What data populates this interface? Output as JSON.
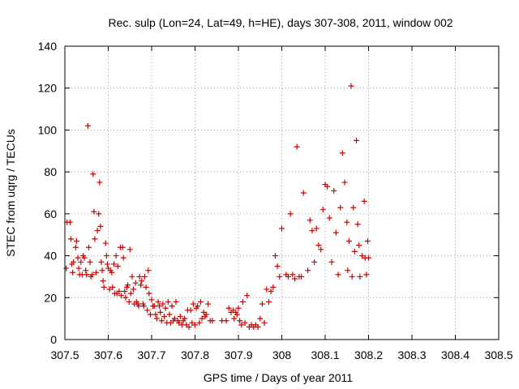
{
  "chart_data": {
    "type": "scatter",
    "title": "Rec. sulp (Lon=24, Lat=49, h=HE), days 307-308, 2011, window 002",
    "xlabel": "GPS time / Days of year 2011",
    "ylabel": "STEC from uqrg / TECUs",
    "xlim": [
      307.5,
      308.5
    ],
    "ylim": [
      0,
      140
    ],
    "xticks": [
      "307.5",
      "307.6",
      "307.7",
      "307.8",
      "307.9",
      "308",
      "308.1",
      "308.2",
      "308.3",
      "308.4",
      "308.5"
    ],
    "yticks": [
      "0",
      "20",
      "40",
      "60",
      "80",
      "100",
      "120",
      "140"
    ],
    "grid": true,
    "marker": "+",
    "marker_color": "#cc0000",
    "points": [
      [
        307.503,
        34
      ],
      [
        307.505,
        56
      ],
      [
        307.512,
        56
      ],
      [
        307.514,
        48
      ],
      [
        307.516,
        36
      ],
      [
        307.518,
        32
      ],
      [
        307.52,
        37
      ],
      [
        307.525,
        44
      ],
      [
        307.527,
        47
      ],
      [
        307.53,
        39
      ],
      [
        307.532,
        34
      ],
      [
        307.534,
        31
      ],
      [
        307.537,
        37
      ],
      [
        307.54,
        31
      ],
      [
        307.542,
        40
      ],
      [
        307.545,
        39
      ],
      [
        307.548,
        33
      ],
      [
        307.55,
        31
      ],
      [
        307.553,
        102
      ],
      [
        307.555,
        44
      ],
      [
        307.558,
        37
      ],
      [
        307.56,
        30
      ],
      [
        307.563,
        31
      ],
      [
        307.565,
        79
      ],
      [
        307.567,
        61
      ],
      [
        307.569,
        48
      ],
      [
        307.572,
        32
      ],
      [
        307.575,
        52
      ],
      [
        307.578,
        60
      ],
      [
        307.58,
        75
      ],
      [
        307.582,
        54
      ],
      [
        307.584,
        37
      ],
      [
        307.586,
        33
      ],
      [
        307.588,
        28
      ],
      [
        307.59,
        25
      ],
      [
        307.594,
        46
      ],
      [
        307.596,
        40
      ],
      [
        307.598,
        36
      ],
      [
        307.6,
        34
      ],
      [
        307.603,
        24
      ],
      [
        307.605,
        33
      ],
      [
        307.608,
        32
      ],
      [
        307.61,
        25
      ],
      [
        307.613,
        36
      ],
      [
        307.615,
        22
      ],
      [
        307.618,
        40
      ],
      [
        307.62,
        22
      ],
      [
        307.622,
        35
      ],
      [
        307.625,
        23
      ],
      [
        307.628,
        44
      ],
      [
        307.63,
        21
      ],
      [
        307.633,
        44
      ],
      [
        307.635,
        39
      ],
      [
        307.638,
        23
      ],
      [
        307.64,
        20
      ],
      [
        307.643,
        25
      ],
      [
        307.645,
        26
      ],
      [
        307.648,
        18
      ],
      [
        307.65,
        43
      ],
      [
        307.652,
        22
      ],
      [
        307.655,
        30
      ],
      [
        307.658,
        24
      ],
      [
        307.66,
        17
      ],
      [
        307.663,
        27
      ],
      [
        307.665,
        18
      ],
      [
        307.668,
        17
      ],
      [
        307.67,
        16
      ],
      [
        307.672,
        30
      ],
      [
        307.675,
        26
      ],
      [
        307.677,
        28
      ],
      [
        307.68,
        17
      ],
      [
        307.682,
        16
      ],
      [
        307.684,
        30
      ],
      [
        307.687,
        25
      ],
      [
        307.69,
        14
      ],
      [
        307.692,
        33
      ],
      [
        307.694,
        22
      ],
      [
        307.697,
        12
      ],
      [
        307.7,
        19
      ],
      [
        307.703,
        16
      ],
      [
        307.706,
        16
      ],
      [
        307.709,
        12
      ],
      [
        307.712,
        10
      ],
      [
        307.715,
        18
      ],
      [
        307.718,
        16
      ],
      [
        307.72,
        13
      ],
      [
        307.723,
        9
      ],
      [
        307.726,
        17
      ],
      [
        307.729,
        11
      ],
      [
        307.732,
        15
      ],
      [
        307.735,
        8
      ],
      [
        307.738,
        18
      ],
      [
        307.741,
        12
      ],
      [
        307.744,
        8
      ],
      [
        307.747,
        16
      ],
      [
        307.75,
        9
      ],
      [
        307.753,
        10
      ],
      [
        307.756,
        18
      ],
      [
        307.76,
        9
      ],
      [
        307.763,
        8
      ],
      [
        307.766,
        11
      ],
      [
        307.77,
        7
      ],
      [
        307.773,
        9
      ],
      [
        307.776,
        10
      ],
      [
        307.78,
        7
      ],
      [
        307.783,
        14
      ],
      [
        307.786,
        6
      ],
      [
        307.79,
        14
      ],
      [
        307.793,
        8
      ],
      [
        307.796,
        17
      ],
      [
        307.8,
        7
      ],
      [
        307.803,
        15
      ],
      [
        307.806,
        16
      ],
      [
        307.81,
        8
      ],
      [
        307.813,
        18
      ],
      [
        307.816,
        10
      ],
      [
        307.82,
        13
      ],
      [
        307.823,
        11
      ],
      [
        307.826,
        12
      ],
      [
        307.83,
        17
      ],
      [
        307.835,
        9
      ],
      [
        307.84,
        9
      ],
      [
        307.862,
        9
      ],
      [
        307.872,
        9
      ],
      [
        307.878,
        15
      ],
      [
        307.883,
        13
      ],
      [
        307.888,
        14
      ],
      [
        307.89,
        10
      ],
      [
        307.894,
        13
      ],
      [
        307.897,
        12
      ],
      [
        307.9,
        15
      ],
      [
        307.903,
        9
      ],
      [
        307.907,
        7
      ],
      [
        307.91,
        18
      ],
      [
        307.915,
        8
      ],
      [
        307.92,
        21
      ],
      [
        307.925,
        6
      ],
      [
        307.93,
        7
      ],
      [
        307.935,
        6
      ],
      [
        307.94,
        7
      ],
      [
        307.945,
        6
      ],
      [
        307.95,
        10
      ],
      [
        307.955,
        17
      ],
      [
        307.96,
        8
      ],
      [
        307.965,
        24
      ],
      [
        307.97,
        18
      ],
      [
        307.975,
        23
      ],
      [
        307.98,
        25
      ],
      [
        307.985,
        40
      ],
      [
        307.99,
        35
      ],
      [
        307.995,
        30
      ],
      [
        308.0,
        53
      ],
      [
        308.01,
        31
      ],
      [
        308.015,
        30
      ],
      [
        308.02,
        60
      ],
      [
        308.025,
        31
      ],
      [
        308.03,
        29
      ],
      [
        308.035,
        92
      ],
      [
        308.04,
        30
      ],
      [
        308.045,
        30
      ],
      [
        308.05,
        70
      ],
      [
        308.06,
        33
      ],
      [
        308.065,
        57
      ],
      [
        308.07,
        52
      ],
      [
        308.075,
        37
      ],
      [
        308.08,
        53
      ],
      [
        308.085,
        45
      ],
      [
        308.09,
        43
      ],
      [
        308.095,
        62
      ],
      [
        308.1,
        74
      ],
      [
        308.105,
        73
      ],
      [
        308.11,
        58
      ],
      [
        308.115,
        37
      ],
      [
        308.12,
        71
      ],
      [
        308.125,
        51
      ],
      [
        308.13,
        31
      ],
      [
        308.135,
        63
      ],
      [
        308.14,
        89
      ],
      [
        308.145,
        75
      ],
      [
        308.15,
        56
      ],
      [
        308.152,
        33
      ],
      [
        308.155,
        47
      ],
      [
        308.16,
        121
      ],
      [
        308.162,
        30
      ],
      [
        308.165,
        63
      ],
      [
        308.168,
        42
      ],
      [
        308.172,
        95
      ],
      [
        308.175,
        55
      ],
      [
        308.178,
        45
      ],
      [
        308.18,
        30
      ],
      [
        308.185,
        40
      ],
      [
        308.19,
        66
      ],
      [
        308.192,
        39
      ],
      [
        308.195,
        31
      ],
      [
        308.198,
        47
      ],
      [
        308.2,
        39
      ]
    ]
  }
}
